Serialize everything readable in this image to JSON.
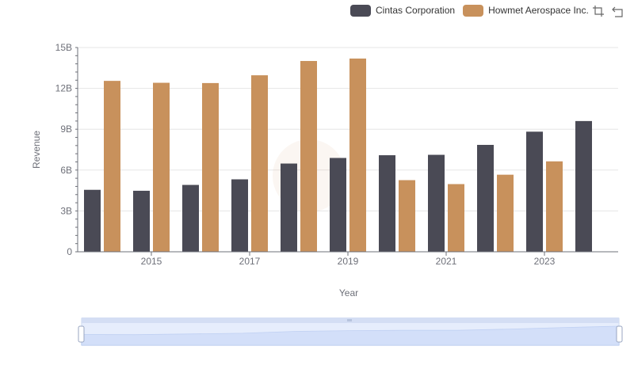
{
  "legend": {
    "series0": "Cintas Corporation",
    "series1": "Howmet Aerospace Inc."
  },
  "toolbox": {
    "zoom_icon": "data-zoom-icon",
    "reset_icon": "restore-icon"
  },
  "colors": {
    "series0": "#4a4a55",
    "series1": "#c8915c",
    "grid": "#e6e6e6",
    "axis": "#6e7079",
    "zoom_fill": "#dbe6fb",
    "zoom_border": "#c7d4ee"
  },
  "chart_data": {
    "type": "bar",
    "xlabel": "Year",
    "ylabel": "Revenue",
    "ylim": [
      0,
      15000000000
    ],
    "yticks": [
      "0",
      "3B",
      "6B",
      "9B",
      "12B",
      "15B"
    ],
    "xtick_labels": [
      "2015",
      "2017",
      "2019",
      "2021",
      "2023"
    ],
    "categories": [
      "2014",
      "2015",
      "2016",
      "2017",
      "2018",
      "2019",
      "2020",
      "2021",
      "2022",
      "2023",
      "2024"
    ],
    "grid": true,
    "legend_position": "top-right",
    "series": [
      {
        "name": "Cintas Corporation",
        "values": [
          4550000000,
          4480000000,
          4910000000,
          5320000000,
          6480000000,
          6890000000,
          7090000000,
          7120000000,
          7850000000,
          8820000000,
          9600000000
        ]
      },
      {
        "name": "Howmet Aerospace Inc.",
        "values": [
          12550000000,
          12410000000,
          12390000000,
          12960000000,
          14010000000,
          14190000000,
          5260000000,
          4970000000,
          5660000000,
          6640000000,
          null
        ]
      }
    ]
  }
}
